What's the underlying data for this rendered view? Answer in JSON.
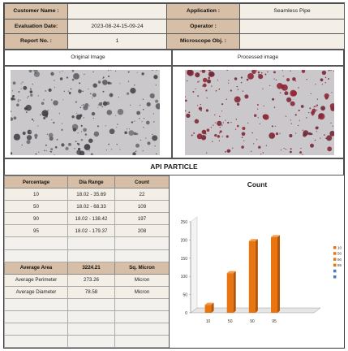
{
  "header": {
    "customer_name_label": "Customer Name :",
    "customer_name_value": "",
    "application_label": "Application :",
    "application_value": "Seamless Pipe",
    "evaluation_date_label": "Evaluation Date:",
    "evaluation_date_value": "2023-08-24-15-09-24",
    "operator_label": "Operator :",
    "operator_value": "",
    "report_no_label": "Report No. :",
    "report_no_value": "1",
    "microscope_obj_label": "Microscope Obj. :",
    "microscope_obj_value": ""
  },
  "images": {
    "original_caption": "Original Image",
    "processed_caption": "Processed image"
  },
  "section_title": "API PARTICLE",
  "table": {
    "headers": [
      "Percentage",
      "Dia Range",
      "Count"
    ],
    "rows": [
      [
        "10",
        "18.02 - 35.69",
        "22"
      ],
      [
        "50",
        "18.02 - 68.33",
        "109"
      ],
      [
        "90",
        "18.02 - 138.42",
        "197"
      ],
      [
        "95",
        "18.02 - 179.37",
        "208"
      ]
    ]
  },
  "summary": {
    "average_area_label": "Average Area",
    "average_area_value": "3224.21",
    "average_area_unit": "Sq. Micron",
    "average_perimeter_label": "Average Perimeter",
    "average_perimeter_value": "273.26",
    "average_perimeter_unit": "Micron",
    "average_diameter_label": "Average Diameter",
    "average_diameter_value": "78.58",
    "average_diameter_unit": "Micron"
  },
  "chart_data": {
    "type": "bar",
    "title": "Count",
    "categories": [
      "10",
      "50",
      "90",
      "95"
    ],
    "values": [
      22,
      109,
      197,
      208
    ],
    "ylim": [
      0,
      250
    ],
    "yticks": [
      0,
      50,
      100,
      150,
      200,
      250
    ],
    "grid": false,
    "legend_position": "right",
    "legend_entries": [
      "10",
      "50",
      "90",
      "95",
      "",
      ""
    ],
    "bar_color": "#e8750f",
    "legend_colors": [
      "#e8750f",
      "#e8750f",
      "#e8750f",
      "#e8750f",
      "#4a7ebb",
      "#4a7ebb"
    ]
  }
}
